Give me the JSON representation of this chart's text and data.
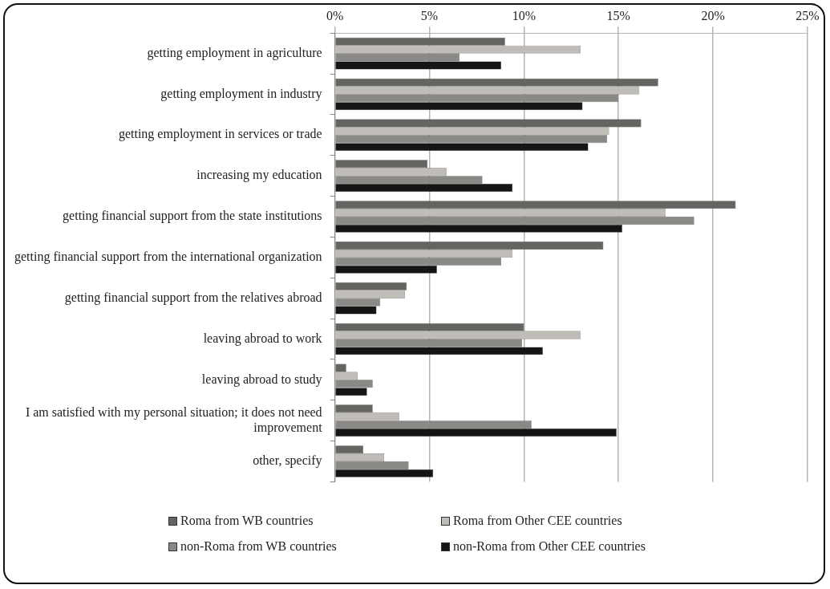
{
  "chart_data": {
    "type": "bar",
    "orientation": "horizontal",
    "categories": [
      "getting employment in agriculture",
      "getting employment in industry",
      "getting employment in services or trade",
      "increasing my education",
      "getting financial support from the state institutions",
      "getting financial support from the international organization",
      "getting financial support from the relatives abroad",
      "leaving abroad to work",
      "leaving abroad to study",
      "I am satisfied with my personal situation; it does not need improvement",
      "other, specify"
    ],
    "series": [
      {
        "name": "Roma from WB countries",
        "color": "#646460",
        "values": [
          9.0,
          17.1,
          16.2,
          4.9,
          21.2,
          14.2,
          3.8,
          10.0,
          0.6,
          2.0,
          1.5
        ]
      },
      {
        "name": "Roma from Other CEE countries",
        "color": "#c0bdb9",
        "values": [
          13.0,
          16.1,
          14.5,
          5.9,
          17.5,
          9.4,
          3.7,
          13.0,
          1.2,
          3.4,
          2.6
        ]
      },
      {
        "name": "non-Roma from WB countries",
        "color": "#8a8985",
        "values": [
          6.6,
          15.0,
          14.4,
          7.8,
          19.0,
          8.8,
          2.4,
          9.9,
          2.0,
          10.4,
          3.9
        ]
      },
      {
        "name": "non-Roma from Other CEE countries",
        "color": "#151515",
        "values": [
          8.8,
          13.1,
          13.4,
          9.4,
          15.2,
          5.4,
          2.2,
          11.0,
          1.7,
          14.9,
          5.2
        ]
      }
    ],
    "xlim": [
      0,
      25
    ],
    "xticks": [
      {
        "value": 0,
        "label": "0%"
      },
      {
        "value": 5,
        "label": "5%"
      },
      {
        "value": 10,
        "label": "10%"
      },
      {
        "value": 15,
        "label": "15%"
      },
      {
        "value": 20,
        "label": "20%"
      },
      {
        "value": 25,
        "label": "25%"
      }
    ],
    "grid": "x",
    "legend": "bottom",
    "marker": "square"
  }
}
